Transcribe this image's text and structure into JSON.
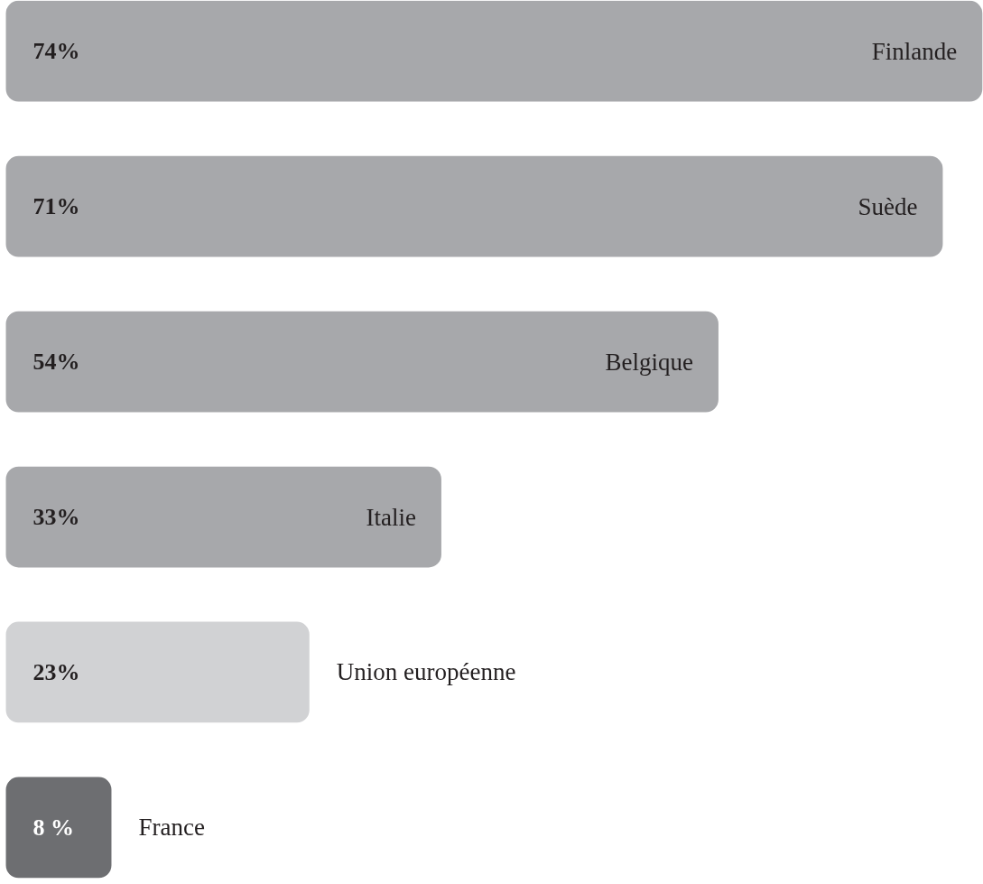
{
  "chart_data": {
    "type": "bar",
    "orientation": "horizontal",
    "categories": [
      "Finlande",
      "Suède",
      "Belgique",
      "Italie",
      "Union européenne",
      "France"
    ],
    "values": [
      74,
      71,
      54,
      33,
      23,
      8
    ],
    "colors": [
      "#a7a8ab",
      "#a7a8ab",
      "#a7a8ab",
      "#a7a8ab",
      "#d1d2d4",
      "#6d6e71"
    ],
    "value_labels": [
      "74%",
      "71%",
      "54%",
      "33%",
      "23%",
      "8 %"
    ],
    "grid": false
  }
}
